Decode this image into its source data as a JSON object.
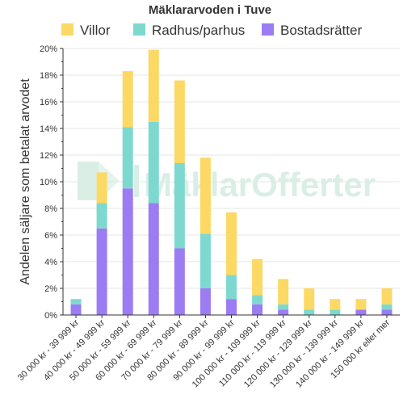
{
  "chart_data": {
    "type": "bar",
    "stacked": true,
    "title": "Mäklararvoden i Tuve",
    "ylabel": "Andelen säljare som betalat arvodet",
    "xlabel": "",
    "ylim": [
      0,
      20
    ],
    "yticks": [
      "0%",
      "2%",
      "4%",
      "6%",
      "8%",
      "10%",
      "12%",
      "14%",
      "16%",
      "18%",
      "20%"
    ],
    "grid": true,
    "legend_position": "top",
    "categories": [
      "30 000 kr - 39 999 kr",
      "40 000 kr - 49 999 kr",
      "50 000 kr - 59 999 kr",
      "60 000 kr - 69 999 kr",
      "70 000 kr - 79 999 kr",
      "80 000 kr - 89 999 kr",
      "90 000 kr - 99 999 kr",
      "100 000 kr - 109 999 kr",
      "110 000 kr - 119 999 kr",
      "120 000 kr - 129 999 kr",
      "130 000 kr - 139 999 kr",
      "140 000 kr - 149 999 kr",
      "150 000 kr eller mer"
    ],
    "series": [
      {
        "name": "Bostadsrätter",
        "color": "#9b7cf2",
        "values": [
          0.8,
          6.5,
          9.5,
          8.4,
          5.0,
          2.0,
          1.2,
          0.8,
          0.4,
          0.0,
          0.0,
          0.4,
          0.4
        ]
      },
      {
        "name": "Radhus/parhus",
        "color": "#7dd9cf",
        "values": [
          0.4,
          1.9,
          4.6,
          6.1,
          6.4,
          4.1,
          1.8,
          0.7,
          0.4,
          0.4,
          0.4,
          0.0,
          0.4
        ]
      },
      {
        "name": "Villor",
        "color": "#fcd865",
        "values": [
          0.0,
          2.3,
          4.2,
          5.4,
          6.2,
          5.7,
          4.7,
          2.7,
          1.9,
          1.6,
          0.8,
          0.8,
          1.2
        ]
      }
    ],
    "legend_order": [
      "Villor",
      "Radhus/parhus",
      "Bostadsrätter"
    ]
  },
  "watermark": {
    "text": "MäklarOfferter",
    "color": "#d9efe6"
  }
}
